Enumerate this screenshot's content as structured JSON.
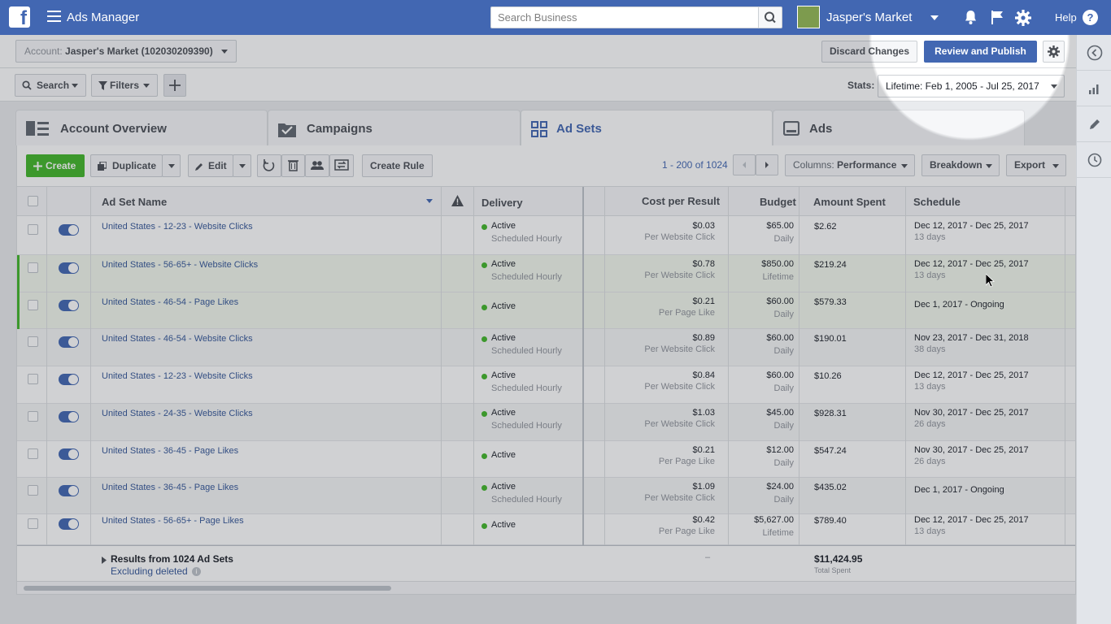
{
  "topbar": {
    "app_name": "Ads Manager",
    "search_placeholder": "Search Business",
    "account_name": "Jasper's Market",
    "help_label": "Help"
  },
  "account_bar": {
    "account_label": "Account:",
    "account_value": "Jasper's Market (102030209390)",
    "discard_label": "Discard Changes",
    "publish_label": "Review and Publish"
  },
  "filter_bar": {
    "search_label": "Search",
    "filters_label": "Filters",
    "stats_label": "Stats:",
    "stats_value": "Lifetime: Feb 1, 2005 - Jul 25, 2017"
  },
  "tabs": [
    {
      "label": "Account Overview",
      "icon": "account-overview-icon"
    },
    {
      "label": "Campaigns",
      "icon": "campaigns-icon"
    },
    {
      "label": "Ad Sets",
      "icon": "ad-sets-icon",
      "active": true
    },
    {
      "label": "Ads",
      "icon": "ads-icon"
    }
  ],
  "toolbar": {
    "create_label": "Create",
    "duplicate_label": "Duplicate",
    "edit_label": "Edit",
    "create_rule_label": "Create Rule",
    "page_count": "1 - 200 of 1024",
    "columns_label": "Columns:",
    "columns_value": "Performance",
    "breakdown_label": "Breakdown",
    "export_label": "Export"
  },
  "table": {
    "headers": {
      "name": "Ad Set Name",
      "delivery": "Delivery",
      "cost": "Cost per Result",
      "budget": "Budget",
      "spent": "Amount Spent",
      "schedule": "Schedule"
    },
    "rows": [
      {
        "name": "United States - 12-23 - Website Clicks",
        "status": "Active",
        "status_sub": "Scheduled Hourly",
        "cost": "$0.03",
        "cost_sub": "Per Website Click",
        "budget": "$65.00",
        "budget_sub": "Daily",
        "spent": "$2.62",
        "schedule": "Dec 12, 2017 - Dec 25, 2017",
        "schedule_sub": "13 days",
        "selected": false
      },
      {
        "name": "United States - 56-65+ - Website Clicks",
        "status": "Active",
        "status_sub": "Scheduled Hourly",
        "cost": "$0.78",
        "cost_sub": "Per Website Click",
        "budget": "$850.00",
        "budget_sub": "Lifetime",
        "spent": "$219.24",
        "schedule": "Dec 12, 2017 - Dec 25, 2017",
        "schedule_sub": "13 days",
        "selected": true
      },
      {
        "name": "United States - 46-54 - Page Likes",
        "status": "Active",
        "status_sub": "",
        "cost": "$0.21",
        "cost_sub": "Per Page Like",
        "budget": "$60.00",
        "budget_sub": "Daily",
        "spent": "$579.33",
        "schedule": "Dec 1, 2017 - Ongoing",
        "schedule_sub": "",
        "selected": true
      },
      {
        "name": "United States - 46-54 - Website Clicks",
        "status": "Active",
        "status_sub": "Scheduled Hourly",
        "cost": "$0.89",
        "cost_sub": "Per Website Click",
        "budget": "$60.00",
        "budget_sub": "Daily",
        "spent": "$190.01",
        "schedule": "Nov 23, 2017 - Dec 31, 2018",
        "schedule_sub": "38 days",
        "selected": false
      },
      {
        "name": "United States - 12-23 - Website Clicks",
        "status": "Active",
        "status_sub": "Scheduled Hourly",
        "cost": "$0.84",
        "cost_sub": "Per Website Click",
        "budget": "$60.00",
        "budget_sub": "Daily",
        "spent": "$10.26",
        "schedule": "Dec 12, 2017 - Dec 25, 2017",
        "schedule_sub": "13 days",
        "selected": false
      },
      {
        "name": "United States - 24-35 - Website Clicks",
        "status": "Active",
        "status_sub": "Scheduled Hourly",
        "cost": "$1.03",
        "cost_sub": "Per Website Click",
        "budget": "$45.00",
        "budget_sub": "Daily",
        "spent": "$928.31",
        "schedule": "Nov 30, 2017 - Dec 25, 2017",
        "schedule_sub": "26 days",
        "selected": false
      },
      {
        "name": "United States - 36-45 - Page Likes",
        "status": "Active",
        "status_sub": "",
        "cost": "$0.21",
        "cost_sub": "Per Page Like",
        "budget": "$12.00",
        "budget_sub": "Daily",
        "spent": "$547.24",
        "schedule": "Nov 30, 2017 - Dec 25, 2017",
        "schedule_sub": "26 days",
        "selected": false
      },
      {
        "name": "United States - 36-45 - Page Likes",
        "status": "Active",
        "status_sub": "Scheduled Hourly",
        "cost": "$1.09",
        "cost_sub": "Per Website Click",
        "budget": "$24.00",
        "budget_sub": "Daily",
        "spent": "$435.02",
        "schedule": "Dec 1, 2017 - Ongoing",
        "schedule_sub": "",
        "selected": false
      },
      {
        "name": "United States - 56-65+ - Page Likes",
        "status": "Active",
        "status_sub": "",
        "cost": "$0.42",
        "cost_sub": "Per Page Like",
        "budget": "$5,627.00",
        "budget_sub": "Lifetime",
        "spent": "$789.40",
        "schedule": "Dec 12, 2017 - Dec 25, 2017",
        "schedule_sub": "13 days",
        "selected": false
      }
    ],
    "footer": {
      "results_label": "Results from 1024 Ad Sets",
      "excluding_label": "Excluding deleted",
      "cost_total": "–",
      "spent_total": "$11,424.95",
      "spent_total_sub": "Total Spent"
    }
  },
  "colors": {
    "brand": "#4267b2",
    "create": "#42b72a",
    "active_dot": "#42b72a"
  }
}
